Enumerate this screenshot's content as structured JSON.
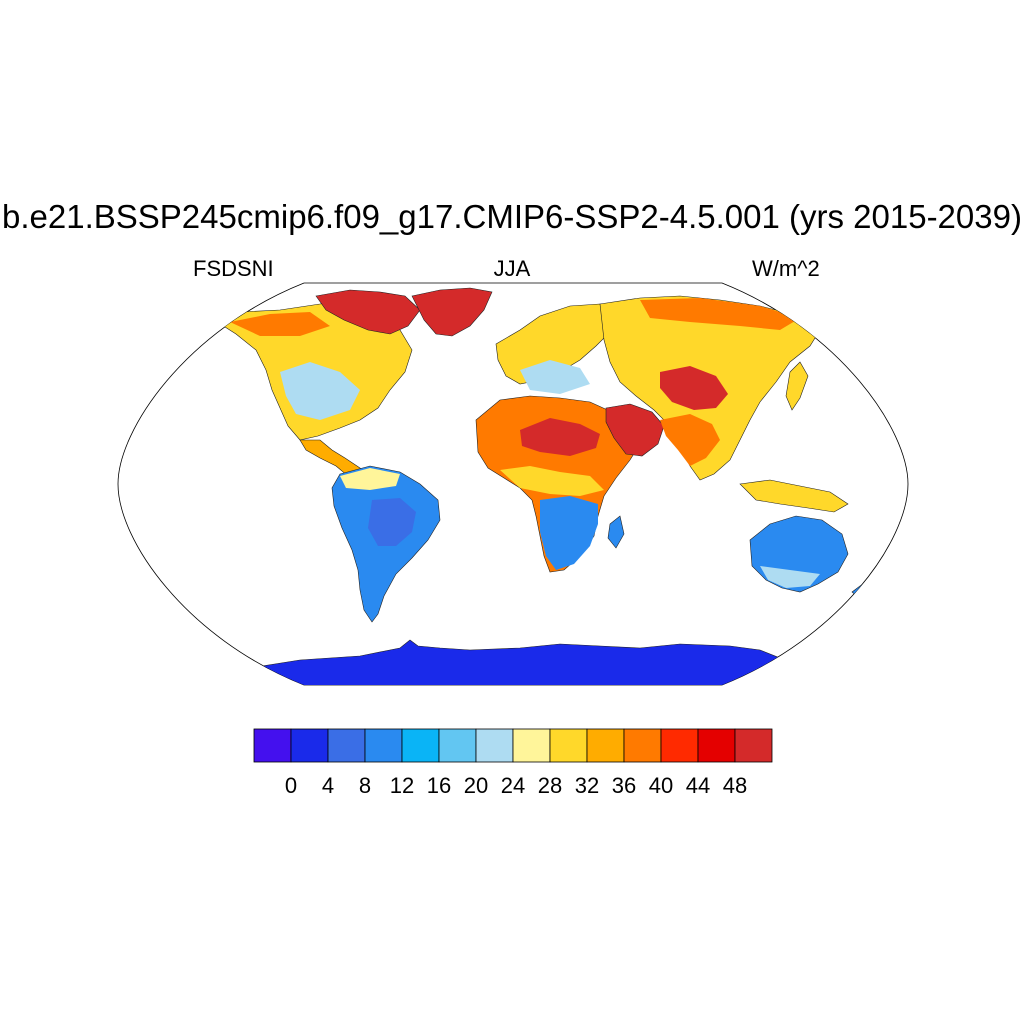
{
  "header": {
    "title": "b.e21.BSSP245cmip6.f09_g17.CMIP6-SSP2-4.5.001 (yrs 2015-2039)",
    "left_label": "FSDSNI",
    "center_label": "JJA",
    "right_label": "W/m^2"
  },
  "colorbar": {
    "colors": [
      "#4410ee",
      "#1a2aea",
      "#3a6ee6",
      "#2a8af0",
      "#0ab4f6",
      "#62c6f2",
      "#aedcf2",
      "#fff59a",
      "#ffd82a",
      "#ffac00",
      "#ff7a00",
      "#ff2a00",
      "#e40000",
      "#d42a2a"
    ],
    "tick_labels": [
      "0",
      "4",
      "8",
      "12",
      "16",
      "20",
      "24",
      "28",
      "32",
      "36",
      "40",
      "44",
      "48"
    ]
  },
  "map": {
    "projection": "Robinson",
    "ocean_color": "#ffffff",
    "regions": [
      {
        "name": "antarctica",
        "level": 1
      },
      {
        "name": "south-america",
        "level": 3
      },
      {
        "name": "southern-africa",
        "level": 4
      },
      {
        "name": "australia",
        "level": 3
      },
      {
        "name": "sahara",
        "level": 11
      },
      {
        "name": "arabia",
        "level": 12
      },
      {
        "name": "greenland",
        "level": 13
      },
      {
        "name": "central-asia",
        "level": 12
      },
      {
        "name": "north-america",
        "level": 8
      }
    ]
  }
}
